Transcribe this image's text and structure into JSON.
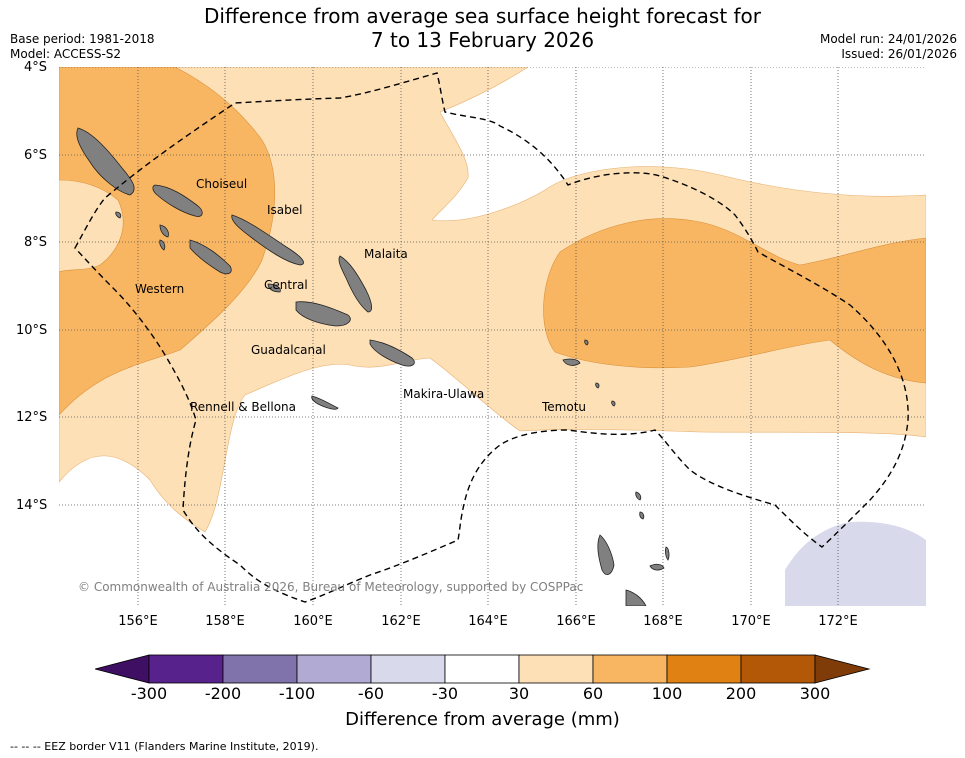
{
  "header": {
    "title_line1": "Difference from average sea surface height forecast for",
    "title_line2": "7 to 13 February 2026",
    "base_period": "Base period: 1981-2018",
    "model": "Model: ACCESS-S2",
    "model_run": "Model run: 24/01/2026",
    "issued": "Issued: 26/01/2026"
  },
  "map": {
    "lat_labels": [
      "4°S",
      "6°S",
      "8°S",
      "10°S",
      "12°S",
      "14°S"
    ],
    "lon_labels": [
      "156°E",
      "158°E",
      "160°E",
      "162°E",
      "164°E",
      "166°E",
      "168°E",
      "170°E",
      "172°E"
    ],
    "regions": {
      "choiseul": "Choiseul",
      "isabel": "Isabel",
      "malaita": "Malaita",
      "western": "Western",
      "central": "Central",
      "guadalcanal": "Guadalcanal",
      "makira_ulawa": "Makira-Ulawa",
      "temotu": "Temotu",
      "rennell_bellona": "Rennell & Bellona"
    },
    "copyright": "© Commonwealth of Australia 2026, Bureau of Meteorology, supported by COSPPac",
    "colors": {
      "land": "#808080",
      "band_30_60": "#fde0b6",
      "band_60_100": "#f9b662",
      "band_neg_60_30": "#d8d8ea"
    }
  },
  "colorbar": {
    "ticks": [
      "-300",
      "-200",
      "-100",
      "-60",
      "-30",
      "30",
      "60",
      "100",
      "200",
      "300"
    ],
    "colors": [
      "#3f0f63",
      "#58228d",
      "#8073ac",
      "#b1aad3",
      "#d8d9eb",
      "#ffffff",
      "#fde0b6",
      "#f9b662",
      "#e08213",
      "#b35806",
      "#7f3b08"
    ],
    "label": "Difference from average (mm)"
  },
  "footer": {
    "eez_note": "--  --  -- EEZ border V11 (Flanders Marine Institute, 2019)."
  }
}
